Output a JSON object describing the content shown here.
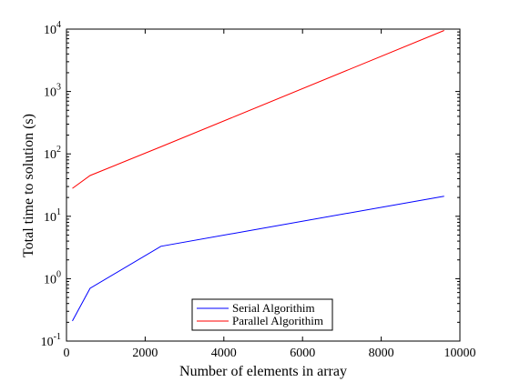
{
  "chart_data": {
    "type": "line",
    "title": "",
    "xlabel": "Number of elements in array",
    "ylabel": "Total time to solution (s)",
    "x_scale": "linear",
    "y_scale": "log",
    "xlim": [
      0,
      10000
    ],
    "ylim": [
      0.1,
      10000
    ],
    "xticks": [
      0,
      2000,
      4000,
      6000,
      8000,
      10000
    ],
    "yticks": [
      {
        "value": 0.1,
        "base": "10",
        "exp": "-1"
      },
      {
        "value": 1,
        "base": "10",
        "exp": "0"
      },
      {
        "value": 10,
        "base": "10",
        "exp": "1"
      },
      {
        "value": 100,
        "base": "10",
        "exp": "2"
      },
      {
        "value": 1000,
        "base": "10",
        "exp": "3"
      },
      {
        "value": 10000,
        "base": "10",
        "exp": "4"
      }
    ],
    "grid": false,
    "legend": "bottom-center",
    "series": [
      {
        "name": "Serial Algorithim",
        "color": "#0000ff",
        "x": [
          150,
          600,
          2400,
          9600
        ],
        "y": [
          0.21,
          0.7,
          3.3,
          21
        ]
      },
      {
        "name": "Parallel Algorithim",
        "color": "#ff0000",
        "x": [
          150,
          600,
          2400,
          9600
        ],
        "y": [
          28,
          45,
          130,
          9500
        ]
      }
    ]
  }
}
